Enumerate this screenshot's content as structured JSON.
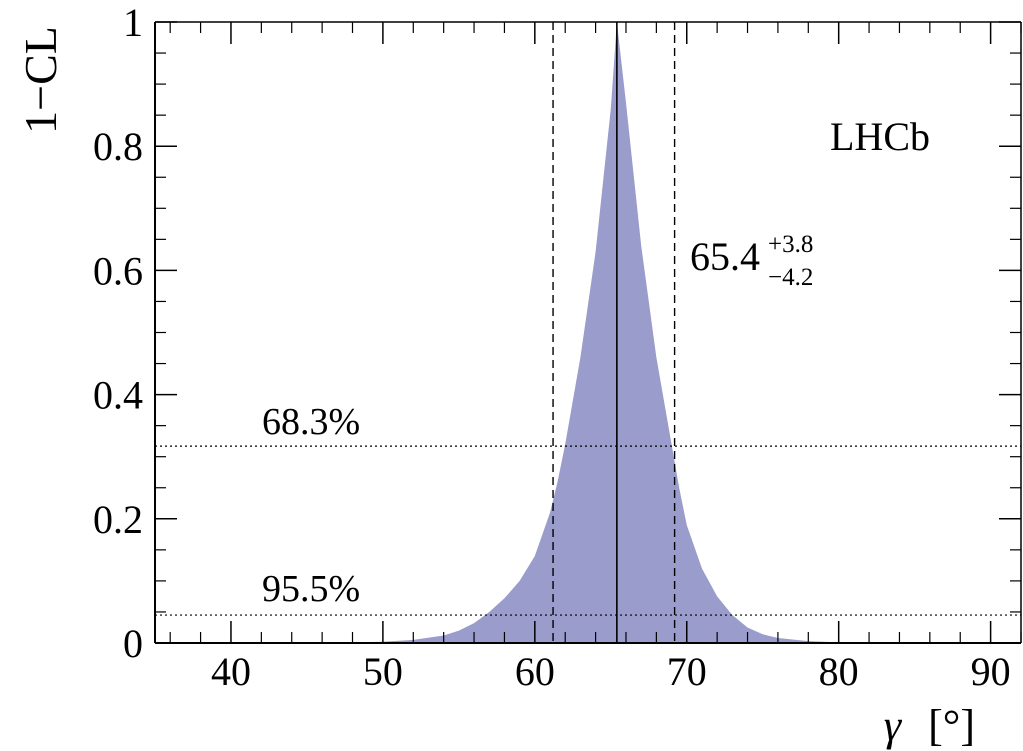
{
  "chart_data": {
    "type": "area",
    "experiment": "LHCb",
    "xlabel": {
      "symbol": "γ",
      "unit": "[°]"
    },
    "ylabel": "1−CL",
    "xlim": [
      35,
      92
    ],
    "ylim": [
      0,
      1
    ],
    "x_ticks": [
      40,
      50,
      60,
      70,
      80,
      90
    ],
    "y_ticks": [
      0,
      0.2,
      0.4,
      0.6,
      0.8,
      1
    ],
    "y_tick_labels": [
      "0",
      "0.2",
      "0.4",
      "0.6",
      "0.8",
      "1"
    ],
    "fill_color": "#9a9ccc",
    "curve": {
      "x": [
        35,
        40,
        45,
        48,
        50,
        52,
        54,
        55,
        56,
        57,
        58,
        59,
        60,
        61,
        61.5,
        62,
        63,
        64,
        65,
        65.4,
        66,
        67,
        68,
        69,
        69.5,
        70,
        71,
        72,
        73,
        74,
        75,
        76,
        78,
        80,
        85,
        92
      ],
      "y": [
        0,
        0,
        0,
        0.001,
        0.002,
        0.005,
        0.012,
        0.02,
        0.032,
        0.05,
        0.072,
        0.1,
        0.14,
        0.21,
        0.26,
        0.32,
        0.46,
        0.63,
        0.86,
        1.0,
        0.87,
        0.64,
        0.46,
        0.32,
        0.25,
        0.19,
        0.12,
        0.075,
        0.045,
        0.025,
        0.014,
        0.008,
        0.003,
        0.001,
        0,
        0
      ]
    },
    "central_value": 65.4,
    "interval_68": [
      61.2,
      69.2
    ],
    "cl_levels": [
      {
        "label": "68.3%",
        "y": 0.317
      },
      {
        "label": "95.5%",
        "y": 0.045
      }
    ],
    "result": {
      "value": "65.4",
      "plus": "+3.8",
      "minus": "−4.2"
    }
  }
}
